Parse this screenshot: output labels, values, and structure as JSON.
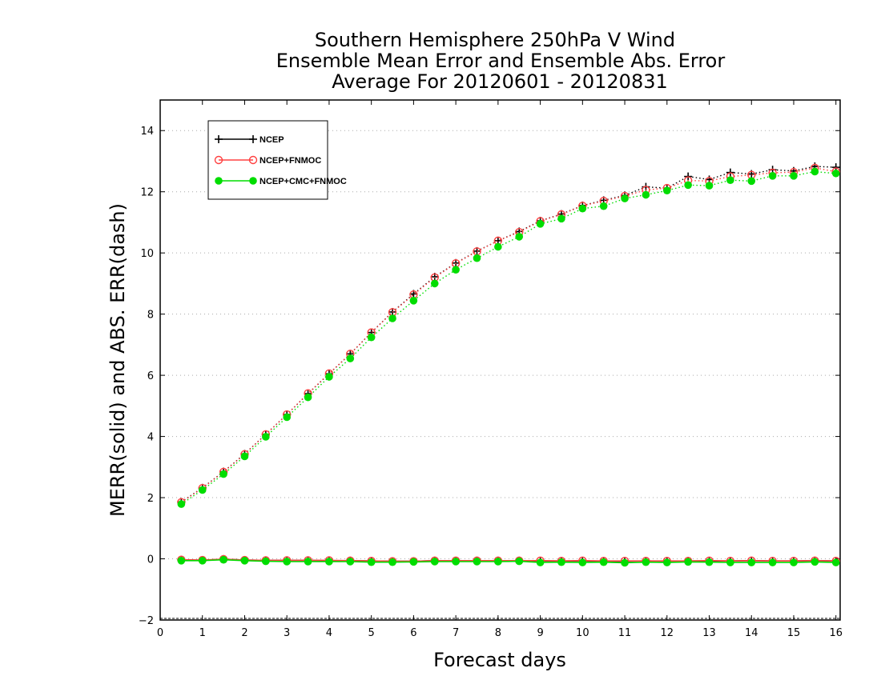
{
  "chart_data": {
    "type": "line",
    "title": [
      "Southern Hemisphere 250hPa V Wind",
      "Ensemble Mean Error and Ensemble Abs. Error",
      "Average For 20120601 - 20120831"
    ],
    "xlabel": "Forecast days",
    "ylabel": "MERR(solid) and ABS. ERR(dash)",
    "xlim": [
      0,
      16.1
    ],
    "ylim": [
      -2,
      15
    ],
    "xticks": [
      0,
      1,
      2,
      3,
      4,
      5,
      6,
      7,
      8,
      9,
      10,
      11,
      12,
      13,
      14,
      15,
      16
    ],
    "yticks": [
      -2,
      0,
      2,
      4,
      6,
      8,
      10,
      12,
      14
    ],
    "grid": "horizontal-dotted",
    "legend_position": "top-left",
    "x": [
      0.5,
      1,
      1.5,
      2,
      2.5,
      3,
      3.5,
      4,
      4.5,
      5,
      5.5,
      6,
      6.5,
      7,
      7.5,
      8,
      8.5,
      9,
      9.5,
      10,
      10.5,
      11,
      11.5,
      12,
      12.5,
      13,
      13.5,
      14,
      14.5,
      15,
      15.5,
      16
    ],
    "series": [
      {
        "name": "NCEP",
        "color": "#000000",
        "marker": "plus",
        "abs_err": [
          1.86,
          2.32,
          2.85,
          3.43,
          4.07,
          4.72,
          5.4,
          6.05,
          6.7,
          7.4,
          8.07,
          8.66,
          9.22,
          9.67,
          10.06,
          10.4,
          10.7,
          11.05,
          11.27,
          11.55,
          11.72,
          11.88,
          12.16,
          12.12,
          12.5,
          12.4,
          12.63,
          12.58,
          12.72,
          12.68,
          12.83,
          12.8
        ],
        "mean_err": [
          -0.03,
          -0.05,
          -0.01,
          -0.04,
          -0.05,
          -0.05,
          -0.05,
          -0.06,
          -0.06,
          -0.07,
          -0.08,
          -0.08,
          -0.06,
          -0.07,
          -0.06,
          -0.06,
          -0.06,
          -0.07,
          -0.07,
          -0.07,
          -0.08,
          -0.08,
          -0.07,
          -0.08,
          -0.07,
          -0.07,
          -0.07,
          -0.06,
          -0.07,
          -0.07,
          -0.06,
          -0.07
        ]
      },
      {
        "name": "NCEP+FNMOC",
        "color": "#ff4040",
        "marker": "open-circle",
        "abs_err": [
          1.85,
          2.31,
          2.84,
          3.42,
          4.07,
          4.72,
          5.41,
          6.06,
          6.7,
          7.4,
          8.06,
          8.64,
          9.2,
          9.66,
          10.05,
          10.4,
          10.68,
          11.04,
          11.26,
          11.54,
          11.7,
          11.86,
          12.06,
          12.12,
          12.37,
          12.35,
          12.5,
          12.55,
          12.62,
          12.64,
          12.78,
          12.66
        ],
        "mean_err": [
          -0.03,
          -0.04,
          -0.01,
          -0.04,
          -0.05,
          -0.05,
          -0.05,
          -0.05,
          -0.06,
          -0.07,
          -0.08,
          -0.08,
          -0.06,
          -0.06,
          -0.06,
          -0.06,
          -0.06,
          -0.06,
          -0.07,
          -0.06,
          -0.07,
          -0.07,
          -0.07,
          -0.07,
          -0.07,
          -0.06,
          -0.07,
          -0.06,
          -0.07,
          -0.07,
          -0.06,
          -0.07
        ]
      },
      {
        "name": "NCEP+CMC+FNMOC",
        "color": "#00dd00",
        "marker": "filled-circle",
        "abs_err": [
          1.79,
          2.25,
          2.77,
          3.35,
          3.99,
          4.63,
          5.28,
          5.95,
          6.55,
          7.24,
          7.86,
          8.44,
          9.0,
          9.45,
          9.83,
          10.2,
          10.53,
          10.95,
          11.12,
          11.45,
          11.53,
          11.78,
          11.9,
          12.04,
          12.22,
          12.2,
          12.38,
          12.35,
          12.52,
          12.52,
          12.66,
          12.6
        ],
        "mean_err": [
          -0.06,
          -0.06,
          -0.03,
          -0.06,
          -0.08,
          -0.09,
          -0.09,
          -0.09,
          -0.09,
          -0.11,
          -0.11,
          -0.1,
          -0.09,
          -0.09,
          -0.09,
          -0.09,
          -0.08,
          -0.12,
          -0.11,
          -0.12,
          -0.11,
          -0.13,
          -0.11,
          -0.12,
          -0.1,
          -0.11,
          -0.12,
          -0.12,
          -0.12,
          -0.12,
          -0.1,
          -0.12
        ]
      }
    ]
  }
}
